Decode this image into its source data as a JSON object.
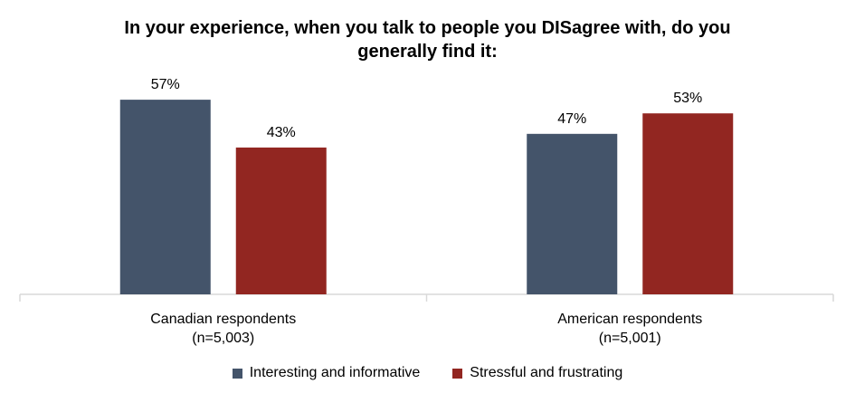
{
  "chart_data": {
    "type": "bar",
    "title": "In your experience, when you talk to people you DISagree with, do you generally find it:",
    "categories": [
      [
        "Canadian respondents",
        "(n=5,003)"
      ],
      [
        "American respondents",
        "(n=5,001)"
      ]
    ],
    "series": [
      {
        "name": "Interesting and informative",
        "color": "#44546a",
        "values": [
          57,
          47
        ],
        "labels": [
          "57%",
          "47%"
        ]
      },
      {
        "name": "Stressful and frustrating",
        "color": "#922621",
        "values": [
          43,
          53
        ],
        "labels": [
          "43%",
          "53%"
        ]
      }
    ],
    "ylim": [
      0,
      60
    ],
    "grid": false,
    "legend_position": "bottom"
  }
}
